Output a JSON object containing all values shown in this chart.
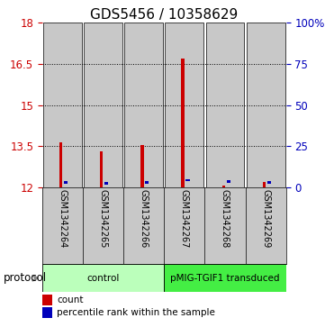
{
  "title": "GDS5456 / 10358629",
  "samples": [
    "GSM1342264",
    "GSM1342265",
    "GSM1342266",
    "GSM1342267",
    "GSM1342268",
    "GSM1342269"
  ],
  "red_values": [
    13.65,
    13.3,
    13.55,
    16.7,
    12.06,
    12.18
  ],
  "blue_values": [
    12.18,
    12.13,
    12.17,
    12.25,
    12.2,
    12.18
  ],
  "ymin": 12,
  "ymax": 18,
  "yticks": [
    12,
    13.5,
    15,
    16.5,
    18
  ],
  "ytick_labels": [
    "12",
    "13.5",
    "15",
    "16.5",
    "18"
  ],
  "right_ytick_labels": [
    "0",
    "25",
    "50",
    "75",
    "100%"
  ],
  "grid_yticks": [
    13.5,
    15,
    16.5
  ],
  "red_color": "#cc0000",
  "blue_color": "#0000bb",
  "bar_bg_color": "#c8c8c8",
  "protocol_groups": [
    {
      "label": "control",
      "indices": [
        0,
        1,
        2
      ],
      "color": "#bbffbb"
    },
    {
      "label": "pMIG-TGIF1 transduced",
      "indices": [
        3,
        4,
        5
      ],
      "color": "#44ee44"
    }
  ],
  "legend_items": [
    {
      "label": "count",
      "color": "#cc0000"
    },
    {
      "label": "percentile rank within the sample",
      "color": "#0000bb"
    }
  ],
  "protocol_label": "protocol",
  "title_fontsize": 11,
  "left_color": "#cc0000",
  "right_color": "#0000bb"
}
